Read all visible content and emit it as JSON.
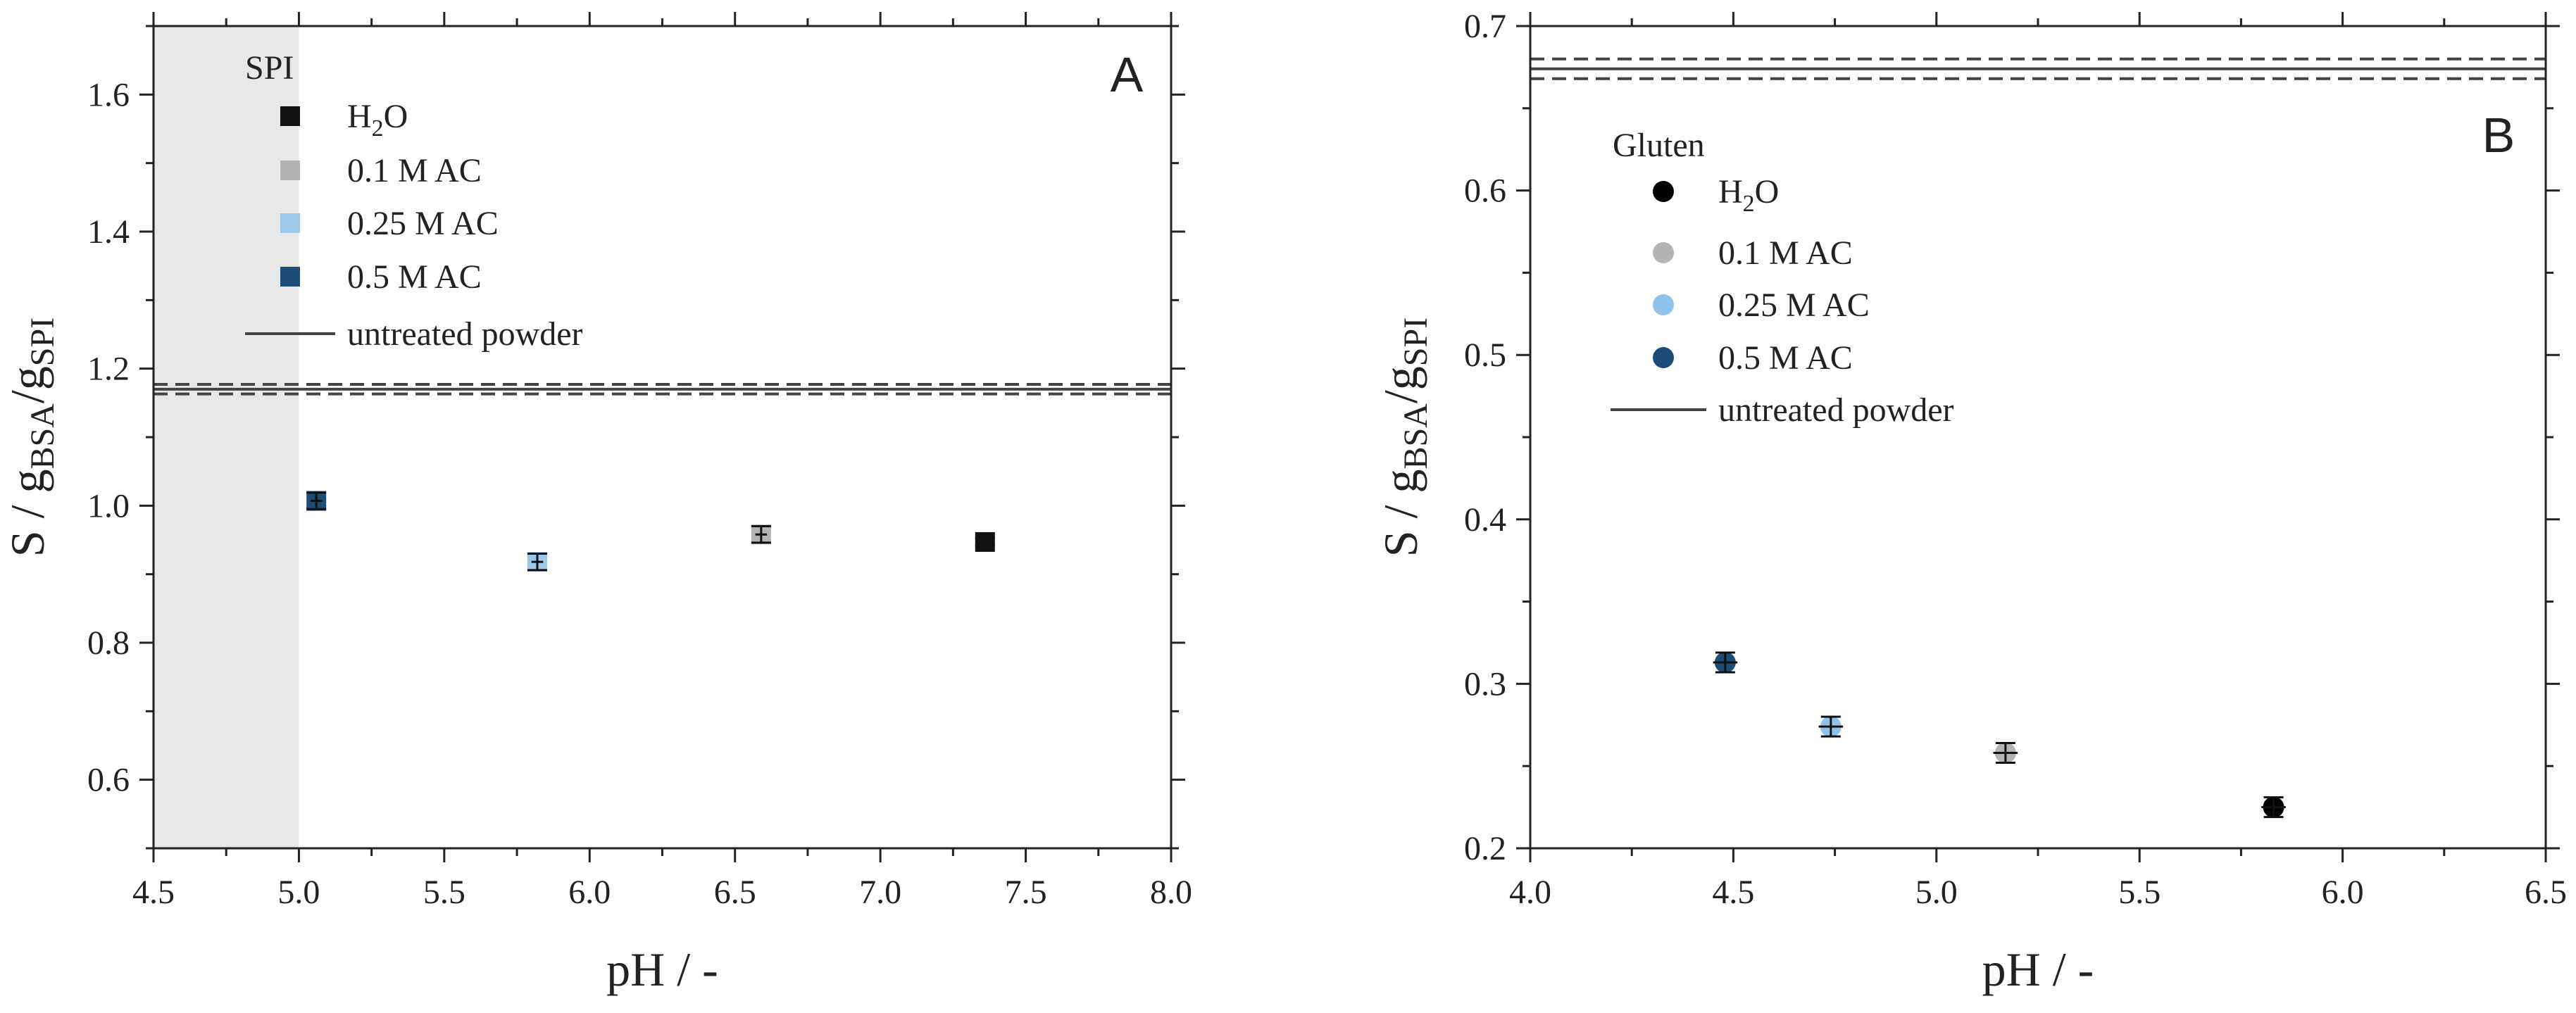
{
  "chart_data": [
    {
      "type": "scatter",
      "panel_label": "A",
      "legend_title": "SPI",
      "xlabel": "pH / -",
      "ylabel": {
        "main": "S / g",
        "sub1": "BSA",
        "mid": "/g",
        "sub2": "SPI"
      },
      "xlim": [
        4.5,
        8.0
      ],
      "ylim": [
        0.5,
        1.7
      ],
      "xticks": [
        "4.5",
        "5.0",
        "5.5",
        "6.0",
        "6.5",
        "7.0",
        "7.5",
        "8.0"
      ],
      "yticks": [
        "0.6",
        "0.8",
        "1.0",
        "1.2",
        "1.4",
        "1.6"
      ],
      "marker": "square",
      "shaded_region": {
        "x": [
          4.5,
          5.0
        ],
        "color": "#e8e8e8"
      },
      "series": [
        {
          "name": "H2O",
          "label_main": "H",
          "label_sub": "2",
          "label_rest": "O",
          "color": "#111111",
          "points": [
            {
              "x": 7.36,
              "y": 0.947,
              "xerr": 0.01,
              "yerr": 0.005
            }
          ]
        },
        {
          "name": "0.1 M AC",
          "color": "#b4b4b4",
          "points": [
            {
              "x": 6.59,
              "y": 0.958,
              "xerr": 0.02,
              "yerr": 0.012
            }
          ]
        },
        {
          "name": "0.25 M AC",
          "color": "#9cc8ea",
          "points": [
            {
              "x": 5.82,
              "y": 0.918,
              "xerr": 0.02,
              "yerr": 0.012
            }
          ]
        },
        {
          "name": "0.5 M AC",
          "color": "#1c4d79",
          "points": [
            {
              "x": 5.06,
              "y": 1.007,
              "xerr": 0.02,
              "yerr": 0.012
            }
          ]
        }
      ],
      "reference": {
        "name": "untreated powder",
        "y": 1.17,
        "band": [
          1.163,
          1.177
        ],
        "color": "#444444"
      }
    },
    {
      "type": "scatter",
      "panel_label": "B",
      "legend_title": "Gluten",
      "xlabel": "pH / -",
      "ylabel": {
        "main": "S / g",
        "sub1": "BSA",
        "mid": "/g",
        "sub2": "SPI"
      },
      "xlim": [
        4.0,
        6.5
      ],
      "ylim": [
        0.2,
        0.7
      ],
      "xticks": [
        "4.0",
        "4.5",
        "5.0",
        "5.5",
        "6.0",
        "6.5"
      ],
      "yticks": [
        "0.2",
        "0.3",
        "0.4",
        "0.5",
        "0.6",
        "0.7"
      ],
      "marker": "circle",
      "series": [
        {
          "name": "H2O",
          "label_main": "H",
          "label_sub": "2",
          "label_rest": "O",
          "color": "#000000",
          "points": [
            {
              "x": 5.83,
              "y": 0.225,
              "xerr": 0.03,
              "yerr": 0.006
            }
          ]
        },
        {
          "name": "0.1 M AC",
          "color": "#b4b4b4",
          "points": [
            {
              "x": 5.17,
              "y": 0.258,
              "xerr": 0.03,
              "yerr": 0.006
            }
          ]
        },
        {
          "name": "0.25 M AC",
          "color": "#8fc3ec",
          "points": [
            {
              "x": 4.74,
              "y": 0.274,
              "xerr": 0.03,
              "yerr": 0.006
            }
          ]
        },
        {
          "name": "0.5 M AC",
          "color": "#1c4d79",
          "points": [
            {
              "x": 4.48,
              "y": 0.313,
              "xerr": 0.03,
              "yerr": 0.006
            }
          ]
        }
      ],
      "reference": {
        "name": "untreated powder",
        "y": 0.674,
        "band": [
          0.668,
          0.68
        ],
        "color": "#444444"
      }
    }
  ]
}
